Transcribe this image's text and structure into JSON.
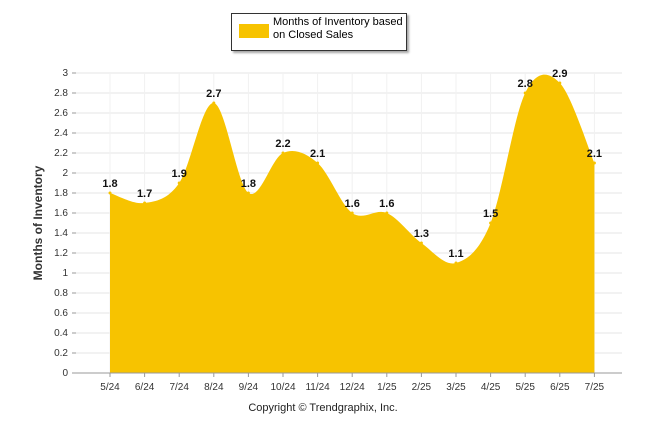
{
  "chart_data": {
    "type": "area",
    "categories": [
      "5/24",
      "6/24",
      "7/24",
      "8/24",
      "9/24",
      "10/24",
      "11/24",
      "12/24",
      "1/25",
      "2/25",
      "3/25",
      "4/25",
      "5/25",
      "6/25",
      "7/25"
    ],
    "series": [
      {
        "name": "Months of Inventory based on Closed Sales",
        "values": [
          1.8,
          1.7,
          1.9,
          2.7,
          1.8,
          2.2,
          2.1,
          1.6,
          1.6,
          1.3,
          1.1,
          1.5,
          2.8,
          2.9,
          2.1
        ]
      }
    ],
    "data_labels": [
      "1.8",
      "1.7",
      "1.9",
      "2.7",
      "1.8",
      "2.2",
      "2.1",
      "1.6",
      "1.6",
      "1.3",
      "1.1",
      "1.5",
      "2.8",
      "2.9",
      "2.1"
    ],
    "ylabel": "Months of Inventory",
    "xlabel": "",
    "ylim": [
      0,
      3
    ],
    "yticks": [
      "0",
      "0.2",
      "0.4",
      "0.6",
      "0.8",
      "1",
      "1.2",
      "1.4",
      "1.6",
      "1.8",
      "2",
      "2.2",
      "2.4",
      "2.6",
      "2.8",
      "3"
    ],
    "grid": true,
    "legend_position": "top-center",
    "colors": {
      "area": "#F7C300",
      "grid": "#e6e6e6",
      "axis": "#999999"
    }
  },
  "legend": {
    "label_line1": "Months of Inventory based",
    "label_line2": "on Closed Sales"
  },
  "footer": {
    "copyright": "Copyright © Trendgraphix, Inc."
  }
}
